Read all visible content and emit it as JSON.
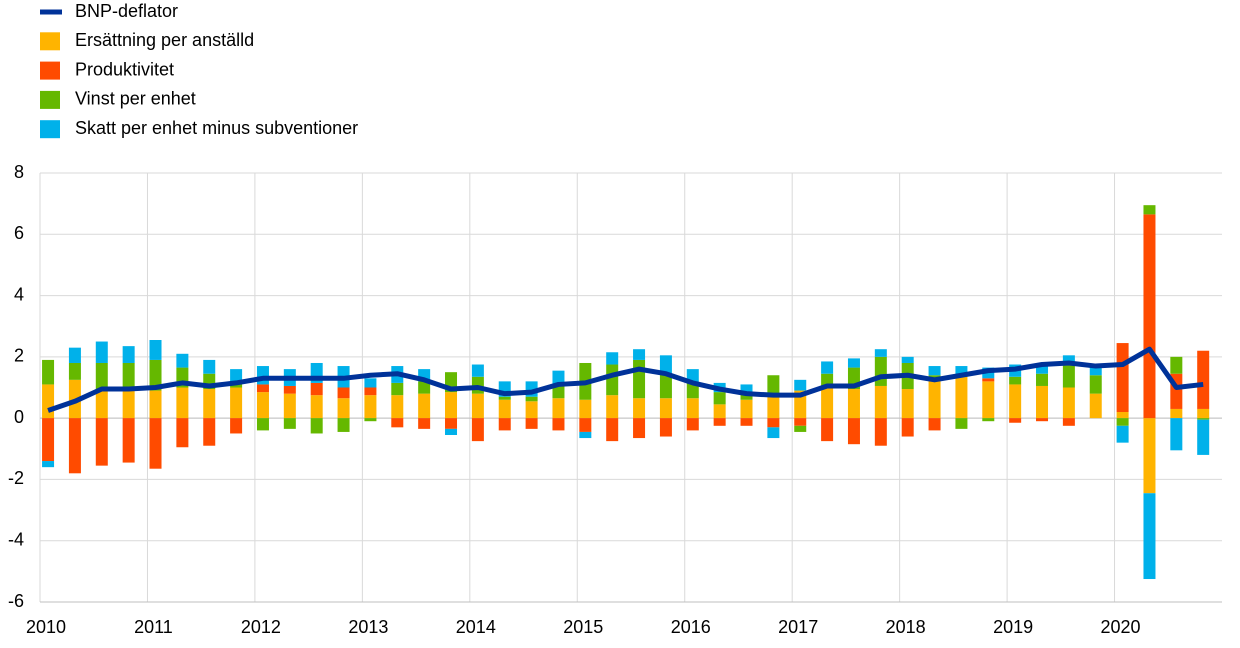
{
  "chart_data": {
    "type": "bar",
    "stacked": true,
    "grid": true,
    "legend": "top-left",
    "categories": [
      "2010",
      null,
      null,
      null,
      "2011",
      null,
      null,
      null,
      "2012",
      null,
      null,
      null,
      "2013",
      null,
      null,
      null,
      "2014",
      null,
      null,
      null,
      "2015",
      null,
      null,
      null,
      "2016",
      null,
      null,
      null,
      "2017",
      null,
      null,
      null,
      "2018",
      null,
      null,
      null,
      "2019",
      null,
      null,
      null,
      "2020",
      null,
      null,
      null
    ],
    "ylim": [
      -6,
      8
    ],
    "yticks": [
      -6,
      -4,
      -2,
      0,
      2,
      4,
      6,
      8
    ],
    "series": [
      {
        "name": "BNP-deflator",
        "type": "line",
        "color": "#003299",
        "values": [
          0.25,
          0.55,
          0.95,
          0.95,
          1.0,
          1.15,
          1.05,
          1.15,
          1.3,
          1.3,
          1.3,
          1.3,
          1.4,
          1.45,
          1.25,
          0.95,
          1.0,
          0.8,
          0.85,
          1.1,
          1.15,
          1.4,
          1.6,
          1.45,
          1.15,
          0.95,
          0.8,
          0.75,
          0.75,
          1.05,
          1.05,
          1.35,
          1.4,
          1.25,
          1.4,
          1.55,
          1.6,
          1.75,
          1.8,
          1.7,
          1.75,
          2.25,
          1.0,
          1.1
        ]
      },
      {
        "name": "Ersättning per anställd",
        "type": "bar",
        "color": "#ffb400",
        "values": [
          1.1,
          1.25,
          0.9,
          0.9,
          0.9,
          1.0,
          0.95,
          1.0,
          0.85,
          0.8,
          0.75,
          0.65,
          0.75,
          0.75,
          0.8,
          0.85,
          0.8,
          0.6,
          0.55,
          0.65,
          0.6,
          0.75,
          0.65,
          0.65,
          0.65,
          0.45,
          0.6,
          0.75,
          0.9,
          1.0,
          0.95,
          1.05,
          0.95,
          1.2,
          1.35,
          1.2,
          1.1,
          1.05,
          1.0,
          0.8,
          0.2,
          -2.45,
          0.3,
          0.3
        ]
      },
      {
        "name": "Produktivitet",
        "type": "bar",
        "color": "#ff4b00",
        "values": [
          -1.4,
          -1.8,
          -1.55,
          -1.45,
          -1.65,
          -0.95,
          -0.9,
          -0.5,
          0.25,
          0.25,
          0.4,
          0.35,
          0.25,
          -0.3,
          -0.35,
          -0.35,
          -0.75,
          -0.4,
          -0.35,
          -0.4,
          -0.45,
          -0.75,
          -0.65,
          -0.6,
          -0.4,
          -0.25,
          -0.25,
          -0.3,
          -0.25,
          -0.75,
          -0.85,
          -0.9,
          -0.6,
          -0.4,
          0,
          0.1,
          -0.15,
          -0.1,
          -0.25,
          0,
          2.25,
          6.65,
          1.15,
          1.9
        ]
      },
      {
        "name": "Vinst per enhet",
        "type": "bar",
        "color": "#65b800",
        "values": [
          0.8,
          0.55,
          0.9,
          0.9,
          1.0,
          0.65,
          0.5,
          0.2,
          -0.4,
          -0.35,
          -0.5,
          -0.45,
          -0.1,
          0.4,
          0.4,
          0.65,
          0.55,
          0.1,
          0.15,
          0.4,
          1.2,
          1.0,
          1.25,
          0.8,
          0.5,
          0.4,
          0.2,
          0.65,
          -0.2,
          0.45,
          0.7,
          0.95,
          0.85,
          0.2,
          -0.35,
          -0.1,
          0.25,
          0.4,
          0.75,
          0.6,
          -0.25,
          0.3,
          0.55,
          -0.05
        ]
      },
      {
        "name": "Skatt per enhet minus subventioner",
        "type": "bar",
        "color": "#00b1ea",
        "values": [
          -0.2,
          0.5,
          0.7,
          0.55,
          0.65,
          0.45,
          0.45,
          0.4,
          0.6,
          0.55,
          0.65,
          0.7,
          0.3,
          0.55,
          0.4,
          -0.2,
          0.4,
          0.5,
          0.5,
          0.5,
          -0.2,
          0.4,
          0.35,
          0.6,
          0.45,
          0.3,
          0.3,
          -0.35,
          0.35,
          0.4,
          0.3,
          0.25,
          0.2,
          0.3,
          0.35,
          0.35,
          0.4,
          0.3,
          0.3,
          0.25,
          -0.55,
          -2.8,
          -1.05,
          -1.15
        ]
      }
    ]
  }
}
